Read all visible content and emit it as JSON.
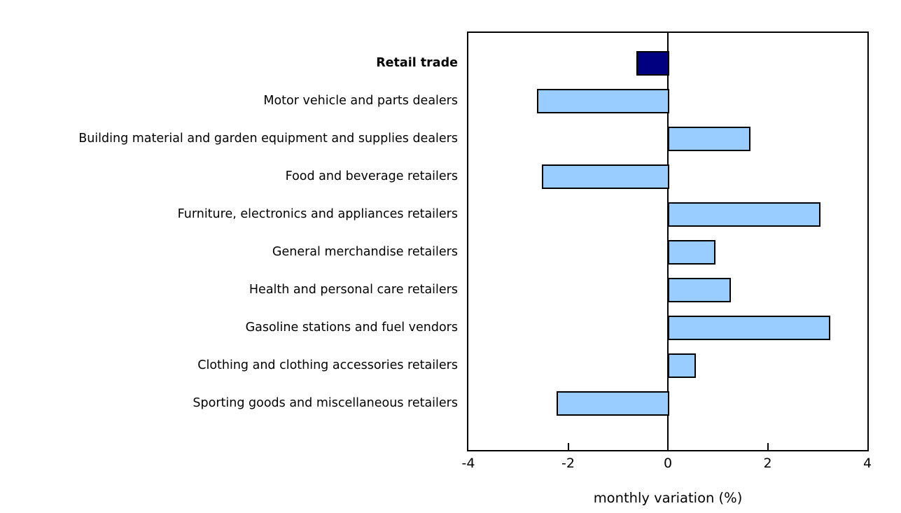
{
  "chart_data": {
    "type": "bar",
    "orientation": "horizontal",
    "title": "",
    "xlabel": "monthly variation (%)",
    "ylabel": "",
    "xlim": [
      -4,
      4
    ],
    "xticks": [
      -4,
      -2,
      0,
      2,
      4
    ],
    "grid": false,
    "legend": false,
    "categories": [
      "Retail trade",
      "Motor vehicle and parts dealers",
      "Building material and garden equipment and supplies dealers",
      "Food and beverage retailers",
      "Furniture, electronics and appliances retailers",
      "General merchandise retailers",
      "Health and personal care retailers",
      "Gasoline stations and fuel vendors",
      "Clothing and clothing accessories retailers",
      "Sporting goods and miscellaneous retailers"
    ],
    "values": [
      -0.6,
      -2.6,
      1.6,
      -2.5,
      3.0,
      0.9,
      1.2,
      3.2,
      0.5,
      -2.2
    ],
    "emphasized_category": "Retail trade",
    "colors": {
      "bar_default": "#99CCFF",
      "bar_emphasis": "#000080",
      "bar_border": "#000000",
      "axis": "#000000",
      "text": "#000000",
      "background": "#FFFFFF"
    }
  }
}
